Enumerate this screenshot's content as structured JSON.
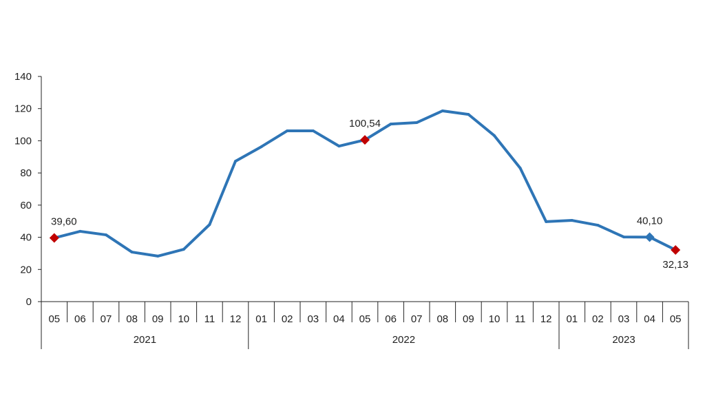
{
  "chart_data": {
    "type": "line",
    "title": "",
    "xlabel": "",
    "ylabel": "",
    "ylim": [
      0,
      140
    ],
    "yticks": [
      0,
      20,
      40,
      60,
      80,
      100,
      120,
      140
    ],
    "grid": false,
    "legend": "none",
    "categories": [
      "05",
      "06",
      "07",
      "08",
      "09",
      "10",
      "11",
      "12",
      "01",
      "02",
      "03",
      "04",
      "05",
      "06",
      "07",
      "08",
      "09",
      "10",
      "11",
      "12",
      "01",
      "02",
      "03",
      "04",
      "05"
    ],
    "years": [
      {
        "label": "2021",
        "count": 8
      },
      {
        "label": "2022",
        "count": 12
      },
      {
        "label": "2023",
        "count": 5
      }
    ],
    "series": [
      {
        "values": [
          39.6,
          43.7,
          41.5,
          30.8,
          28.3,
          32.5,
          47.9,
          87.3,
          96.3,
          106.2,
          106.2,
          96.7,
          100.54,
          110.4,
          111.3,
          118.6,
          116.4,
          103.2,
          83.0,
          49.7,
          50.5,
          47.5,
          40.2,
          40.1,
          32.13
        ]
      }
    ],
    "annotations": [
      {
        "index": 0,
        "text": "39,60",
        "marker": "red",
        "pos": "above"
      },
      {
        "index": 12,
        "text": "100,54",
        "marker": "red",
        "pos": "above"
      },
      {
        "index": 23,
        "text": "40,10",
        "marker": "blue",
        "pos": "above"
      },
      {
        "index": 24,
        "text": "32,13",
        "marker": "red",
        "pos": "below"
      }
    ],
    "colors": {
      "line": "#2e75b6",
      "highlight": "#c00000",
      "axis": "#222222"
    }
  }
}
